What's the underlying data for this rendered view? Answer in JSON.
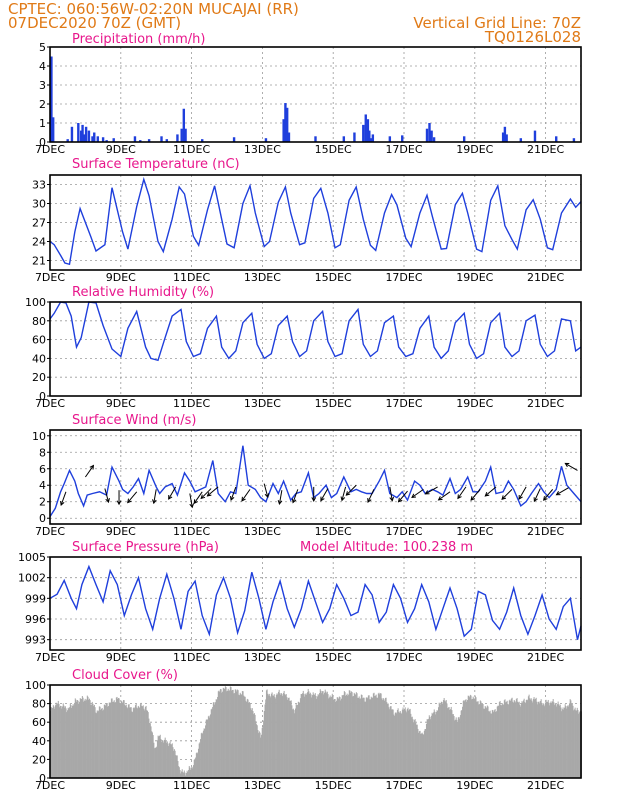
{
  "header": {
    "line1": "CPTEC:   060:56W-02:20N   MUCAJAI (RR)",
    "line2": "07DEC2020 70Z (GMT)",
    "grid_line": "Vertical Grid Line: 70Z",
    "code": "TQ0126L028"
  },
  "colors": {
    "header": "#e07a17",
    "panel_title": "#e8178c",
    "series": "#1f3fdc",
    "cloud": "#a8a8a8",
    "wind_arrow": "#000000"
  },
  "chart_data": [
    {
      "id": "precip",
      "type": "bar",
      "title": "Precipitation (mm/h)",
      "xticks": [
        "7DEC",
        "9DEC",
        "11DEC",
        "13DEC",
        "15DEC",
        "17DEC",
        "19DEC",
        "21DEC"
      ],
      "xrange": [
        0,
        15
      ],
      "ylim": [
        0,
        5
      ],
      "yticks": [
        0,
        1,
        2,
        3,
        4,
        5
      ],
      "grid": true,
      "x": [
        0.04,
        0.09,
        0.5,
        0.62,
        0.8,
        0.88,
        0.92,
        0.98,
        1.02,
        1.1,
        1.2,
        1.25,
        1.35,
        1.5,
        1.6,
        1.8,
        2.4,
        2.55,
        2.8,
        3.15,
        3.3,
        3.6,
        3.72,
        3.78,
        3.83,
        4.3,
        5.2,
        6.1,
        6.6,
        6.65,
        6.7,
        6.75,
        7.5,
        8.3,
        8.6,
        8.85,
        8.92,
        8.98,
        9.02,
        9.07,
        9.12,
        9.6,
        9.95,
        10.65,
        10.72,
        10.78,
        10.85,
        11.7,
        12.8,
        12.85,
        12.9,
        13.3,
        13.7,
        14.3,
        14.8
      ],
      "values": [
        4.5,
        1.3,
        0.15,
        0.8,
        1.0,
        0.6,
        0.9,
        0.4,
        0.8,
        0.6,
        0.3,
        0.5,
        0.3,
        0.25,
        0.1,
        0.2,
        0.3,
        0.1,
        0.15,
        0.3,
        0.15,
        0.4,
        0.7,
        1.75,
        0.7,
        0.15,
        0.25,
        0.2,
        1.2,
        2.05,
        1.8,
        0.5,
        0.3,
        0.3,
        0.5,
        0.9,
        1.45,
        1.2,
        0.6,
        0.2,
        0.4,
        0.3,
        0.35,
        0.7,
        1.0,
        0.6,
        0.25,
        0.3,
        0.5,
        0.8,
        0.4,
        0.2,
        0.6,
        0.3,
        0.2
      ]
    },
    {
      "id": "temp",
      "type": "line",
      "title": "Surface Temperature (nC)",
      "xticks": [
        "7DEC",
        "9DEC",
        "11DEC",
        "13DEC",
        "15DEC",
        "17DEC",
        "19DEC",
        "21DEC"
      ],
      "xrange": [
        0,
        15
      ],
      "ylim": [
        19.5,
        34.5
      ],
      "yticks": [
        21,
        24,
        27,
        30,
        33
      ],
      "grid": true,
      "x": [
        0,
        0.12,
        0.3,
        0.42,
        0.55,
        0.7,
        0.85,
        1.15,
        1.3,
        1.55,
        1.75,
        2.05,
        2.2,
        2.45,
        2.65,
        2.8,
        3.05,
        3.2,
        3.45,
        3.65,
        3.8,
        4.05,
        4.2,
        4.45,
        4.65,
        4.85,
        5.0,
        5.2,
        5.45,
        5.65,
        5.8,
        6.05,
        6.2,
        6.45,
        6.65,
        6.8,
        7.05,
        7.2,
        7.45,
        7.65,
        7.85,
        8.05,
        8.2,
        8.45,
        8.65,
        8.85,
        9.05,
        9.2,
        9.45,
        9.65,
        9.8,
        10.05,
        10.2,
        10.45,
        10.65,
        10.8,
        11.05,
        11.2,
        11.45,
        11.65,
        11.8,
        12.05,
        12.2,
        12.45,
        12.65,
        12.85,
        13.05,
        13.2,
        13.45,
        13.65,
        13.85,
        14.05,
        14.2,
        14.45,
        14.7,
        14.85,
        15.0
      ],
      "values": [
        24,
        23.5,
        21.8,
        20.6,
        20.4,
        25.5,
        29.2,
        24.8,
        22.5,
        23.5,
        32.5,
        25.5,
        22.8,
        29.5,
        33.8,
        31.2,
        24,
        22.4,
        27.5,
        32.6,
        31.5,
        24.8,
        23.4,
        29,
        32.8,
        27.5,
        23.6,
        23,
        30,
        32.8,
        28.5,
        23.2,
        24,
        30.2,
        32.6,
        28.5,
        23.5,
        23.8,
        30.8,
        32.4,
        28.5,
        23,
        23.5,
        30.5,
        32.6,
        27.5,
        23.4,
        22.6,
        28.5,
        31.4,
        29.8,
        24.5,
        23.2,
        28.5,
        31.3,
        28,
        22.8,
        22.9,
        29.8,
        31.6,
        28.5,
        22.8,
        22.4,
        30.5,
        32.8,
        26.5,
        24.3,
        22.8,
        29,
        30.6,
        27.5,
        23,
        22.7,
        28.5,
        30.7,
        29.4,
        30.3
      ]
    },
    {
      "id": "rh",
      "type": "line",
      "title": "Relative Humidity (%)",
      "xticks": [
        "7DEC",
        "9DEC",
        "11DEC",
        "13DEC",
        "15DEC",
        "17DEC",
        "19DEC",
        "21DEC"
      ],
      "xrange": [
        0,
        15
      ],
      "ylim": [
        0,
        100
      ],
      "yticks": [
        0,
        20,
        40,
        60,
        80,
        100
      ],
      "grid": true,
      "x": [
        0,
        0.12,
        0.3,
        0.45,
        0.6,
        0.75,
        0.88,
        1.1,
        1.3,
        1.5,
        1.75,
        2.0,
        2.2,
        2.45,
        2.7,
        2.85,
        3.05,
        3.25,
        3.45,
        3.7,
        3.85,
        4.05,
        4.25,
        4.45,
        4.7,
        4.85,
        5.05,
        5.25,
        5.45,
        5.7,
        5.85,
        6.05,
        6.25,
        6.45,
        6.7,
        6.85,
        7.05,
        7.25,
        7.45,
        7.7,
        7.85,
        8.05,
        8.25,
        8.45,
        8.7,
        8.85,
        9.05,
        9.25,
        9.45,
        9.7,
        9.85,
        10.05,
        10.25,
        10.45,
        10.7,
        10.85,
        11.05,
        11.25,
        11.45,
        11.7,
        11.85,
        12.05,
        12.25,
        12.45,
        12.7,
        12.85,
        13.05,
        13.25,
        13.45,
        13.7,
        13.85,
        14.05,
        14.25,
        14.45,
        14.7,
        14.85,
        15.0
      ],
      "values": [
        82,
        88,
        100,
        99,
        85,
        52,
        62,
        100,
        99,
        75,
        50,
        42,
        72,
        90,
        52,
        40,
        38,
        62,
        85,
        92,
        58,
        42,
        45,
        72,
        85,
        52,
        40,
        48,
        78,
        88,
        55,
        40,
        45,
        75,
        85,
        58,
        42,
        48,
        80,
        90,
        58,
        42,
        45,
        80,
        92,
        55,
        42,
        48,
        78,
        85,
        52,
        42,
        45,
        72,
        85,
        52,
        40,
        48,
        78,
        88,
        55,
        40,
        45,
        78,
        88,
        52,
        42,
        48,
        80,
        86,
        55,
        42,
        48,
        82,
        80,
        48,
        52
      ]
    },
    {
      "id": "wind",
      "type": "line",
      "title": "Surface Wind (m/s)",
      "xticks": [
        "7DEC",
        "9DEC",
        "11DEC",
        "13DEC",
        "15DEC",
        "17DEC",
        "19DEC",
        "21DEC"
      ],
      "xrange": [
        0,
        15
      ],
      "ylim": [
        -0.7,
        10.7
      ],
      "yticks": [
        0,
        2,
        4,
        6,
        8,
        10
      ],
      "grid": true,
      "x": [
        0,
        0.15,
        0.3,
        0.4,
        0.55,
        0.7,
        0.8,
        0.95,
        1.05,
        1.2,
        1.4,
        1.6,
        1.75,
        1.95,
        2.05,
        2.2,
        2.35,
        2.5,
        2.65,
        2.8,
        3.0,
        3.1,
        3.25,
        3.45,
        3.6,
        3.8,
        3.95,
        4.1,
        4.25,
        4.4,
        4.6,
        4.75,
        4.95,
        5.1,
        5.25,
        5.45,
        5.6,
        5.8,
        5.95,
        6.1,
        6.3,
        6.45,
        6.6,
        6.8,
        6.95,
        7.1,
        7.3,
        7.45,
        7.6,
        7.8,
        7.95,
        8.1,
        8.3,
        8.5,
        8.65,
        8.8,
        8.95,
        9.1,
        9.3,
        9.45,
        9.6,
        9.8,
        9.95,
        10.1,
        10.3,
        10.45,
        10.6,
        10.8,
        10.95,
        11.1,
        11.3,
        11.45,
        11.6,
        11.8,
        11.95,
        12.1,
        12.3,
        12.45,
        12.6,
        12.8,
        12.95,
        13.1,
        13.3,
        13.45,
        13.6,
        13.8,
        13.95,
        14.1,
        14.3,
        14.45,
        14.6,
        14.8,
        15.0
      ],
      "values": [
        0.2,
        1.2,
        3.2,
        4.2,
        5.8,
        4.5,
        3.0,
        1.5,
        2.8,
        3.0,
        3.2,
        2.8,
        6.2,
        4.5,
        3.5,
        3.0,
        3.8,
        4.8,
        3.0,
        5.8,
        3.8,
        3.0,
        3.8,
        4.2,
        2.8,
        5.5,
        4.5,
        3.2,
        3.5,
        3.8,
        7.0,
        3.0,
        2.0,
        3.2,
        3.0,
        8.8,
        4.0,
        3.5,
        2.5,
        2.0,
        4.2,
        3.0,
        4.5,
        2.2,
        3.0,
        3.2,
        5.5,
        2.5,
        3.0,
        4.0,
        2.5,
        3.0,
        5.0,
        3.2,
        3.5,
        3.2,
        3.0,
        3.0,
        4.5,
        5.8,
        3.0,
        2.5,
        3.2,
        2.2,
        4.5,
        4.0,
        3.0,
        3.5,
        3.2,
        2.8,
        4.8,
        3.0,
        3.5,
        5.0,
        3.2,
        3.2,
        4.5,
        6.2,
        3.0,
        3.2,
        4.5,
        3.5,
        1.5,
        2.0,
        3.0,
        4.2,
        3.2,
        2.5,
        3.5,
        6.3,
        4.0,
        3.0,
        2.0
      ]
    },
    {
      "id": "pres",
      "type": "line",
      "title": "Surface Pressure (hPa)",
      "annotation": "Model Altitude: 100.238 m",
      "xticks": [
        "7DEC",
        "9DEC",
        "11DEC",
        "13DEC",
        "15DEC",
        "17DEC",
        "19DEC",
        "21DEC"
      ],
      "xrange": [
        0,
        15
      ],
      "ylim": [
        991.5,
        1005
      ],
      "yticks": [
        993,
        996,
        999,
        1002,
        1005
      ],
      "grid": true,
      "x": [
        0,
        0.2,
        0.4,
        0.6,
        0.75,
        0.9,
        1.1,
        1.3,
        1.5,
        1.7,
        1.9,
        2.1,
        2.3,
        2.5,
        2.7,
        2.9,
        3.1,
        3.3,
        3.5,
        3.7,
        3.9,
        4.1,
        4.3,
        4.5,
        4.7,
        4.9,
        5.1,
        5.3,
        5.5,
        5.7,
        5.9,
        6.1,
        6.3,
        6.5,
        6.7,
        6.9,
        7.1,
        7.3,
        7.5,
        7.7,
        7.9,
        8.1,
        8.3,
        8.5,
        8.7,
        8.9,
        9.1,
        9.3,
        9.5,
        9.7,
        9.9,
        10.1,
        10.3,
        10.5,
        10.7,
        10.9,
        11.1,
        11.3,
        11.5,
        11.7,
        11.9,
        12.1,
        12.3,
        12.5,
        12.7,
        12.9,
        13.1,
        13.3,
        13.5,
        13.7,
        13.9,
        14.1,
        14.3,
        14.5,
        14.7,
        14.9,
        15.0
      ],
      "values": [
        999,
        999.6,
        1001.6,
        999,
        997.5,
        1001,
        1003.6,
        1001,
        998.5,
        1003,
        1001,
        996.5,
        999.5,
        1002,
        997.5,
        994.5,
        999,
        1002.5,
        999,
        994.5,
        1000,
        1001.5,
        996.5,
        993.8,
        999.5,
        1002,
        999,
        994,
        997.2,
        1002.8,
        999,
        994.5,
        998.5,
        1001.5,
        997.5,
        994.8,
        997.5,
        1001.5,
        998.5,
        995.5,
        997.5,
        1001,
        999,
        996.5,
        997,
        1001,
        999.5,
        995.5,
        997,
        1001,
        999,
        995.5,
        997.5,
        1001,
        998.5,
        994.5,
        997.5,
        1000.5,
        997.5,
        993.5,
        994.5,
        1000,
        999.5,
        995.8,
        994.5,
        997,
        1000.5,
        996.5,
        993.8,
        996.5,
        999.5,
        996,
        994.5,
        997.8,
        999,
        993,
        995
      ]
    },
    {
      "id": "cloud",
      "type": "bar",
      "title": "Cloud Cover (%)",
      "xticks": [
        "7DEC",
        "9DEC",
        "11DEC",
        "13DEC",
        "15DEC",
        "17DEC",
        "19DEC",
        "21DEC"
      ],
      "xrange": [
        0,
        15
      ],
      "ylim": [
        0,
        100
      ],
      "yticks": [
        0,
        20,
        40,
        60,
        80,
        100
      ],
      "grid": true,
      "step": 0.02,
      "profile": [
        [
          0,
          72
        ],
        [
          0.15,
          80
        ],
        [
          0.3,
          78
        ],
        [
          0.5,
          74
        ],
        [
          0.7,
          82
        ],
        [
          0.9,
          85
        ],
        [
          1.1,
          85
        ],
        [
          1.3,
          72
        ],
        [
          1.5,
          76
        ],
        [
          1.7,
          82
        ],
        [
          1.9,
          85
        ],
        [
          2.1,
          80
        ],
        [
          2.3,
          74
        ],
        [
          2.5,
          78
        ],
        [
          2.7,
          76
        ],
        [
          2.85,
          55
        ],
        [
          2.95,
          30
        ],
        [
          3.05,
          45
        ],
        [
          3.2,
          40
        ],
        [
          3.35,
          38
        ],
        [
          3.5,
          32
        ],
        [
          3.65,
          10
        ],
        [
          3.75,
          5
        ],
        [
          3.9,
          8
        ],
        [
          4.05,
          15
        ],
        [
          4.3,
          50
        ],
        [
          4.6,
          78
        ],
        [
          4.8,
          95
        ],
        [
          5.0,
          96
        ],
        [
          5.2,
          94
        ],
        [
          5.45,
          90
        ],
        [
          5.7,
          75
        ],
        [
          5.95,
          42
        ],
        [
          6.1,
          92
        ],
        [
          6.3,
          88
        ],
        [
          6.5,
          92
        ],
        [
          6.7,
          88
        ],
        [
          6.9,
          72
        ],
        [
          7.1,
          90
        ],
        [
          7.3,
          92
        ],
        [
          7.5,
          88
        ],
        [
          7.7,
          94
        ],
        [
          7.9,
          88
        ],
        [
          8.1,
          84
        ],
        [
          8.3,
          90
        ],
        [
          8.5,
          92
        ],
        [
          8.7,
          88
        ],
        [
          8.9,
          85
        ],
        [
          9.1,
          88
        ],
        [
          9.3,
          90
        ],
        [
          9.5,
          82
        ],
        [
          9.7,
          70
        ],
        [
          9.9,
          72
        ],
        [
          10.1,
          75
        ],
        [
          10.3,
          60
        ],
        [
          10.5,
          45
        ],
        [
          10.7,
          66
        ],
        [
          10.9,
          72
        ],
        [
          11.1,
          85
        ],
        [
          11.3,
          74
        ],
        [
          11.5,
          60
        ],
        [
          11.7,
          84
        ],
        [
          11.9,
          88
        ],
        [
          12.1,
          82
        ],
        [
          12.3,
          76
        ],
        [
          12.5,
          70
        ],
        [
          12.7,
          80
        ],
        [
          12.9,
          82
        ],
        [
          13.1,
          84
        ],
        [
          13.3,
          80
        ],
        [
          13.5,
          86
        ],
        [
          13.7,
          84
        ],
        [
          13.9,
          80
        ],
        [
          14.1,
          82
        ],
        [
          14.3,
          80
        ],
        [
          14.5,
          74
        ],
        [
          14.7,
          82
        ],
        [
          14.85,
          72
        ],
        [
          15.0,
          72
        ]
      ]
    }
  ],
  "wind_vectors": [
    {
      "x": 0.45,
      "y": 3.2,
      "dir": 200
    },
    {
      "x": 1.0,
      "y": 5.0,
      "dir": 35
    },
    {
      "x": 1.55,
      "y": 3.6,
      "dir": 165
    },
    {
      "x": 1.95,
      "y": 3.4,
      "dir": 180
    },
    {
      "x": 2.45,
      "y": 3.2,
      "dir": 220
    },
    {
      "x": 3.0,
      "y": 3.5,
      "dir": 190
    },
    {
      "x": 3.55,
      "y": 3.8,
      "dir": 210
    },
    {
      "x": 3.95,
      "y": 3.0,
      "dir": 170
    },
    {
      "x": 4.3,
      "y": 3.2,
      "dir": 215
    },
    {
      "x": 4.55,
      "y": 3.6,
      "dir": 225
    },
    {
      "x": 4.75,
      "y": 3.8,
      "dir": 230
    },
    {
      "x": 5.25,
      "y": 3.8,
      "dir": 200
    },
    {
      "x": 5.65,
      "y": 3.5,
      "dir": 215
    },
    {
      "x": 6.05,
      "y": 4.2,
      "dir": 165
    },
    {
      "x": 6.55,
      "y": 3.4,
      "dir": 190
    },
    {
      "x": 7.0,
      "y": 3.5,
      "dir": 200
    },
    {
      "x": 7.45,
      "y": 3.8,
      "dir": 180
    },
    {
      "x": 7.85,
      "y": 3.6,
      "dir": 210
    },
    {
      "x": 8.35,
      "y": 3.8,
      "dir": 195
    },
    {
      "x": 8.65,
      "y": 4.0,
      "dir": 225
    },
    {
      "x": 9.15,
      "y": 3.5,
      "dir": 205
    },
    {
      "x": 9.6,
      "y": 3.8,
      "dir": 170
    },
    {
      "x": 10.1,
      "y": 3.3,
      "dir": 220
    },
    {
      "x": 10.55,
      "y": 3.5,
      "dir": 235
    },
    {
      "x": 10.95,
      "y": 3.8,
      "dir": 240
    },
    {
      "x": 11.3,
      "y": 3.2,
      "dir": 235
    },
    {
      "x": 11.75,
      "y": 3.8,
      "dir": 215
    },
    {
      "x": 12.15,
      "y": 3.5,
      "dir": 220
    },
    {
      "x": 12.6,
      "y": 3.8,
      "dir": 230
    },
    {
      "x": 13.05,
      "y": 3.5,
      "dir": 225
    },
    {
      "x": 13.45,
      "y": 3.8,
      "dir": 210
    },
    {
      "x": 13.85,
      "y": 3.6,
      "dir": 205
    },
    {
      "x": 14.2,
      "y": 3.5,
      "dir": 220
    },
    {
      "x": 14.65,
      "y": 3.7,
      "dir": 240
    },
    {
      "x": 14.9,
      "y": 5.8,
      "dir": 300
    }
  ]
}
